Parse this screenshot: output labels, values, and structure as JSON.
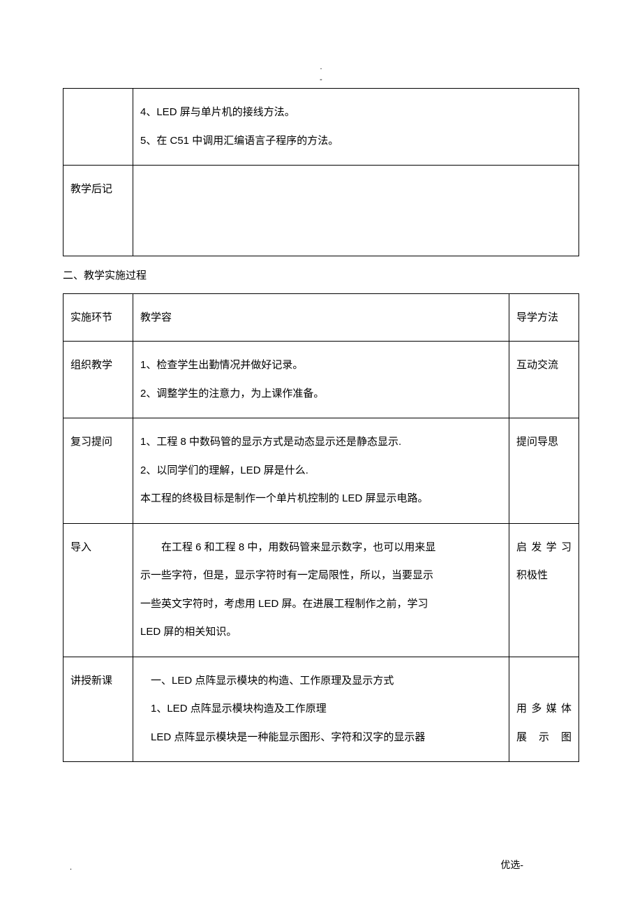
{
  "header": {
    "dot": ".",
    "bar": "-"
  },
  "table1": {
    "row1_content_a": "4、LED 屏与单片机的接线方法。",
    "row1_content_b": "5、在 C51 中调用汇编语言子程序的方法。",
    "row2_label": "教学后记"
  },
  "heading": "二、教学实施过程",
  "table2": {
    "header": {
      "c1": "实施环节",
      "c2": "教学容",
      "c3": "导学方法"
    },
    "row_org": {
      "c1": "组织教学",
      "c2a": "1、检查学生出勤情况并做好记录。",
      "c2b": "2、调整学生的注意力，为上课作准备。",
      "c3": "互动交流"
    },
    "row_review": {
      "c1": "复习提问",
      "c2a": "1、工程 8 中数码管的显示方式是动态显示还是静态显示.",
      "c2b": "2、以同学们的理解，LED 屏是什么.",
      "c2c": "本工程的终极目标是制作一个单片机控制的 LED 屏显示电路。",
      "c3": "提问导思"
    },
    "row_intro": {
      "c1": "导入",
      "c2a": "　　在工程 6 和工程 8 中，用数码管来显示数字，也可以用来显",
      "c2b": "示一些字符，但是，显示字符时有一定局限性，所以，当要显示",
      "c2c": "一些英文字符时，考虑用 LED 屏。在进展工程制作之前，学习",
      "c2d": "LED 屏的相关知识。",
      "c3a": "启 发 学 习",
      "c3b": "积极性"
    },
    "row_lecture": {
      "c1": "讲授新课",
      "c2a": "　一、LED 点阵显示模块的构造、工作原理及显示方式",
      "c2b": "　1、LED 点阵显示模块构造及工作原理",
      "c2c": "　LED 点阵显示模块是一种能显示图形、字符和汉字的显示器",
      "c3a": "用 多 媒 体",
      "c3b": "展 示 图"
    }
  },
  "footer": {
    "left": ".",
    "right": "优选-"
  }
}
